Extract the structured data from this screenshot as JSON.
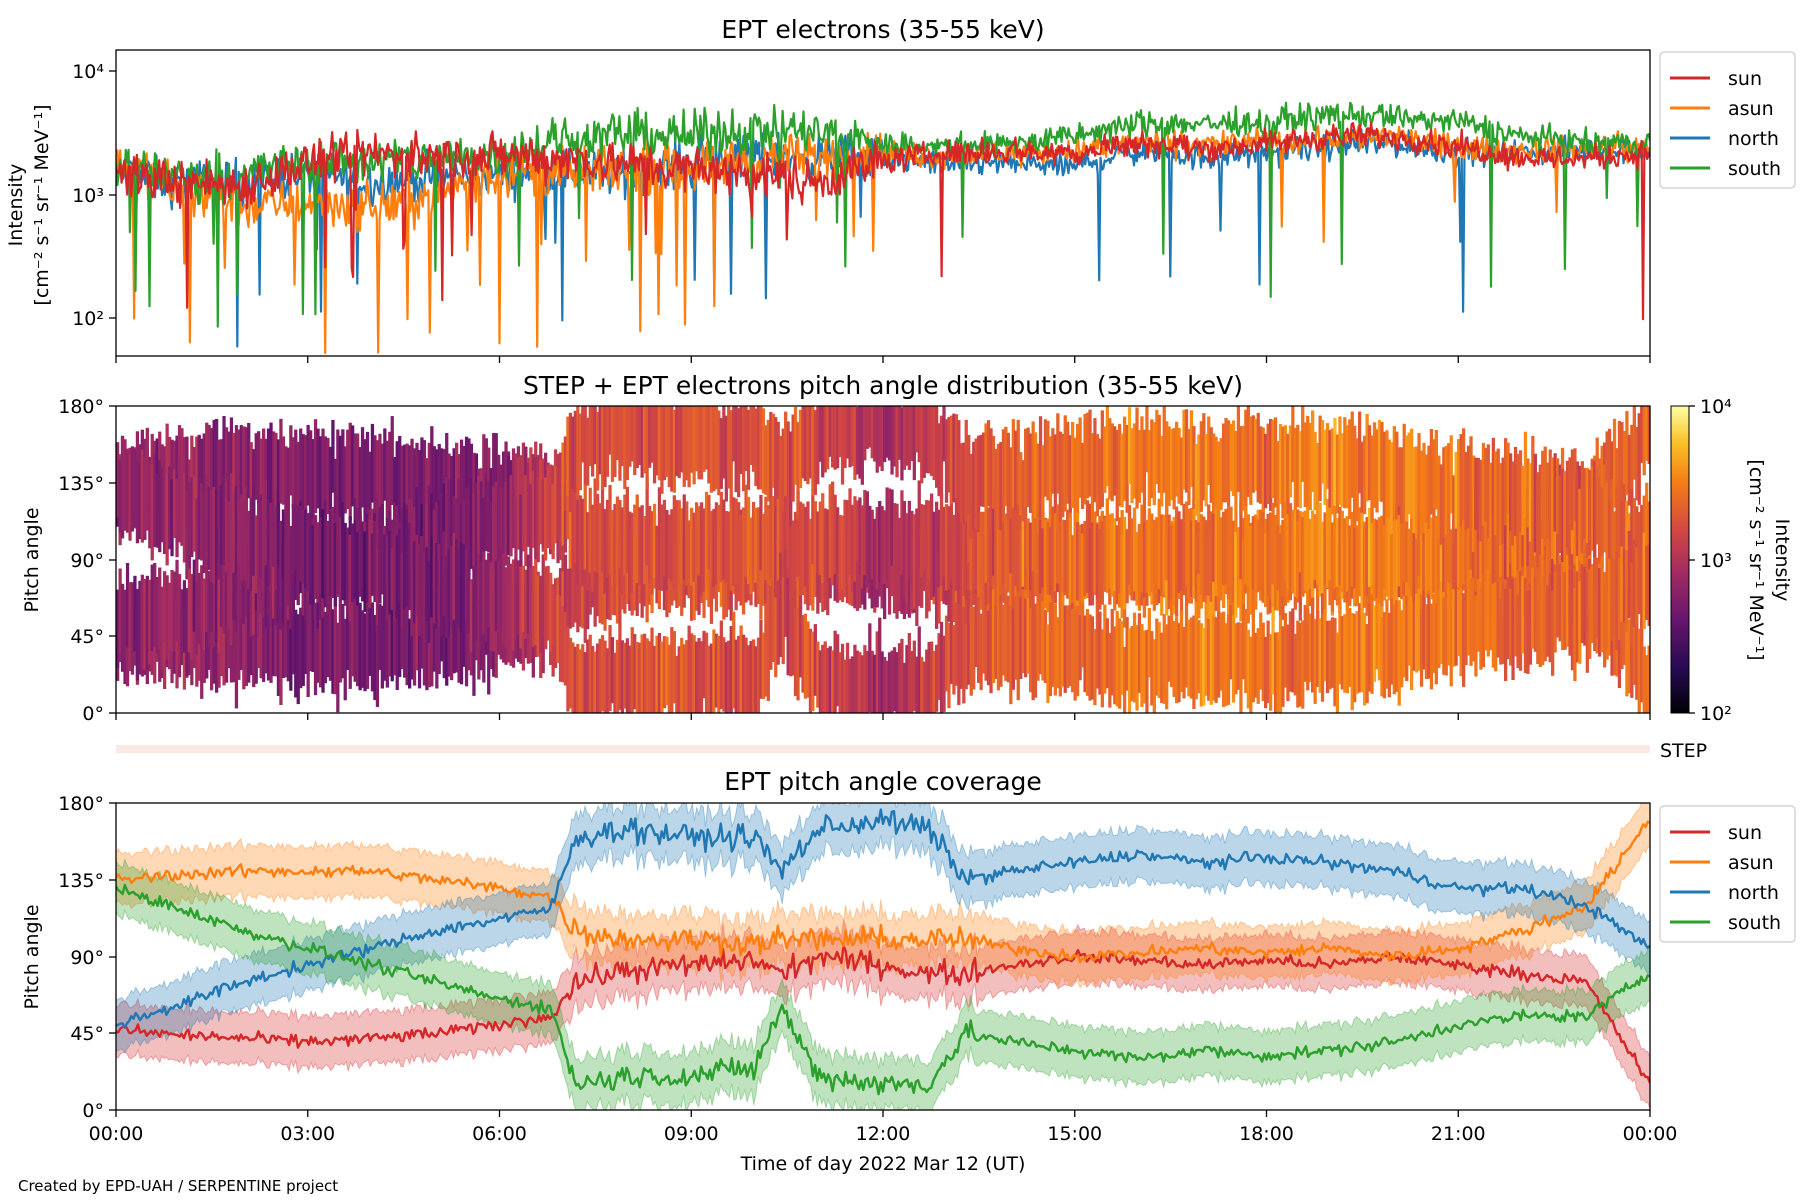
{
  "figure": {
    "credit": "Created by EPD-UAH / SERPENTINE project",
    "xlabel": "Time of day 2022 Mar 12 (UT)",
    "xticks": [
      "00:00",
      "03:00",
      "06:00",
      "09:00",
      "12:00",
      "15:00",
      "18:00",
      "21:00",
      "00:00"
    ],
    "step_label": "STEP"
  },
  "colors": {
    "sun": "#d62728",
    "asun": "#ff7f0e",
    "north": "#1f77b4",
    "south": "#2ca02c"
  },
  "panels": {
    "intensity": {
      "title": "EPT electrons (35-55 keV)",
      "ylabel_line1": "Intensity",
      "ylabel_line2": "[cm⁻² s⁻¹ sr⁻¹ MeV⁻¹]",
      "yticks": [
        "10⁴",
        "10³",
        "10²"
      ]
    },
    "pad": {
      "title": "STEP + EPT electrons pitch angle distribution (35-55 keV)",
      "ylabel": "Pitch angle",
      "yticks": [
        "180°",
        "135°",
        "90°",
        "45°",
        "0°"
      ],
      "colorbar_label_line1": "Intensity",
      "colorbar_label_line2": "[cm⁻² s⁻¹ sr⁻¹ MeV⁻¹]",
      "colorbar_ticks": [
        "10⁴",
        "10³",
        "10²"
      ]
    },
    "coverage": {
      "title": "EPT pitch angle coverage",
      "ylabel": "Pitch angle",
      "yticks": [
        "180°",
        "135°",
        "90°",
        "45°",
        "0°"
      ]
    }
  },
  "legend": [
    "sun",
    "asun",
    "north",
    "south"
  ],
  "chart_data": [
    {
      "type": "line",
      "title": "EPT electrons (35-55 keV)",
      "xlabel": "",
      "ylabel": "Intensity [cm⁻² s⁻¹ sr⁻¹ MeV⁻¹]",
      "yscale": "log",
      "ylim": [
        50,
        15000
      ],
      "xlim": [
        0,
        24
      ],
      "x_unit": "hours UT",
      "x": [
        0,
        1,
        2,
        3,
        4,
        5,
        6,
        7,
        8,
        9,
        10,
        11,
        12,
        13,
        14,
        15,
        16,
        17,
        18,
        19,
        20,
        21,
        22,
        23,
        24
      ],
      "series": [
        {
          "name": "sun",
          "values": [
            1500,
            1300,
            1200,
            1800,
            2200,
            2000,
            2100,
            2000,
            1800,
            1600,
            1500,
            1300,
            1900,
            2200,
            2300,
            2200,
            2700,
            2400,
            2600,
            3000,
            3000,
            2500,
            2000,
            2000,
            2200
          ]
        },
        {
          "name": "asun",
          "values": [
            1800,
            1100,
            800,
            900,
            800,
            1000,
            1600,
            1500,
            1600,
            1700,
            2000,
            2000,
            2200,
            2100,
            2200,
            2300,
            2700,
            2600,
            2700,
            2900,
            3000,
            2400,
            2300,
            2400,
            2400
          ]
        },
        {
          "name": "north",
          "values": [
            1500,
            1200,
            1300,
            1500,
            1300,
            1400,
            1500,
            1600,
            1500,
            1800,
            2100,
            2000,
            2000,
            1800,
            1800,
            1700,
            2300,
            2000,
            2200,
            2500,
            2600,
            2200,
            2200,
            2300,
            2300
          ]
        },
        {
          "name": "south",
          "values": [
            1800,
            1400,
            1500,
            1900,
            1900,
            2000,
            2200,
            2800,
            3200,
            3000,
            3500,
            3200,
            2600,
            2500,
            2600,
            3000,
            3800,
            3800,
            3900,
            4500,
            4300,
            3900,
            3000,
            2600,
            2600
          ]
        }
      ]
    },
    {
      "type": "heatmap",
      "title": "STEP + EPT electrons pitch angle distribution (35-55 keV)",
      "xlabel": "",
      "ylabel": "Pitch angle",
      "ylim": [
        0,
        180
      ],
      "xlim": [
        0,
        24
      ],
      "colorbar": {
        "label": "Intensity [cm⁻² s⁻¹ sr⁻¹ MeV⁻¹]",
        "scale": "log",
        "range": [
          100,
          10000
        ],
        "colormap": "inferno"
      },
      "description_of_bands": "four pitch-angle bands following the EPT telescope coverage (sun, asun, north, south); darker purple early in the day (~400-800), orange after 13:00 (~2000-4000)",
      "band_intensity_by_hour": [
        700,
        700,
        600,
        500,
        500,
        500,
        600,
        1500,
        1800,
        1800,
        1800,
        1500,
        800,
        1500,
        2200,
        2300,
        2800,
        2800,
        2800,
        3000,
        3000,
        2600,
        2300,
        2200,
        2200
      ]
    },
    {
      "type": "line",
      "title": "EPT pitch angle coverage",
      "xlabel": "Time of day 2022 Mar 12 (UT)",
      "ylabel": "Pitch angle",
      "ylim": [
        0,
        180
      ],
      "xlim": [
        0,
        24
      ],
      "x_unit": "hours UT",
      "x": [
        0,
        1,
        2,
        3,
        4,
        5,
        6,
        6.8,
        7.2,
        8,
        9,
        10,
        10.4,
        11,
        12,
        12.7,
        13.3,
        14,
        15,
        16,
        17,
        18,
        19,
        20,
        21,
        22,
        23,
        24
      ],
      "band_half_width_deg": 15,
      "series": [
        {
          "name": "sun",
          "values": [
            47,
            44,
            42,
            40,
            42,
            45,
            50,
            55,
            75,
            82,
            85,
            88,
            80,
            90,
            85,
            80,
            80,
            85,
            90,
            88,
            85,
            88,
            85,
            90,
            85,
            80,
            75,
            15
          ]
        },
        {
          "name": "asun",
          "values": [
            135,
            138,
            140,
            140,
            140,
            135,
            130,
            125,
            105,
            100,
            100,
            98,
            100,
            100,
            100,
            100,
            100,
            95,
            90,
            92,
            95,
            92,
            95,
            90,
            95,
            105,
            120,
            170
          ]
        },
        {
          "name": "north",
          "values": [
            50,
            62,
            75,
            85,
            95,
            105,
            112,
            118,
            160,
            165,
            160,
            160,
            140,
            165,
            170,
            165,
            135,
            140,
            145,
            150,
            145,
            148,
            145,
            140,
            130,
            130,
            120,
            95
          ]
        },
        {
          "name": "south",
          "values": [
            130,
            118,
            105,
            95,
            85,
            75,
            65,
            60,
            15,
            20,
            20,
            25,
            60,
            20,
            15,
            15,
            45,
            40,
            35,
            30,
            35,
            32,
            35,
            40,
            50,
            55,
            55,
            80
          ]
        }
      ]
    }
  ]
}
